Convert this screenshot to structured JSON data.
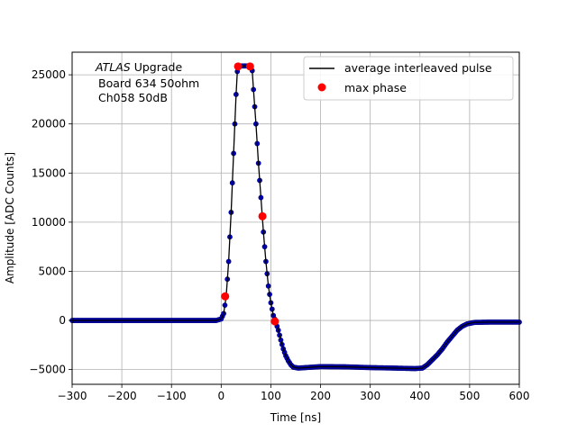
{
  "chart_data": {
    "type": "scatter",
    "xlabel": "Time [ns]",
    "ylabel": "Amplitude [ADC Counts]",
    "xlim": [
      -300,
      600
    ],
    "ylim": [
      -6500,
      27300
    ],
    "xticks": [
      -300,
      -200,
      -100,
      0,
      100,
      200,
      300,
      400,
      500,
      600
    ],
    "xtick_labels": [
      "−300",
      "−200",
      "−100",
      "0",
      "100",
      "200",
      "300",
      "400",
      "500",
      "600"
    ],
    "yticks": [
      -5000,
      0,
      5000,
      10000,
      15000,
      20000,
      25000
    ],
    "ytick_labels": [
      "−5000",
      "0",
      "5000",
      "10000",
      "15000",
      "20000",
      "25000"
    ],
    "grid": true,
    "legend_position": "top-right",
    "annotation": {
      "line1_italic": "ATLAS",
      "line1_rest": " Upgrade",
      "line2": "Board 634 50ohm",
      "line3": "Ch058 50dB"
    },
    "series": [
      {
        "name": "average interleaved pulse",
        "style": "line",
        "color": "#000000",
        "points": [
          [
            -300,
            0
          ],
          [
            -100,
            0
          ],
          [
            -10,
            0
          ],
          [
            0,
            150
          ],
          [
            5,
            700
          ],
          [
            10,
            2400
          ],
          [
            15,
            6000
          ],
          [
            20,
            11000
          ],
          [
            25,
            17000
          ],
          [
            30,
            23000
          ],
          [
            33,
            25800
          ],
          [
            40,
            25900
          ],
          [
            50,
            25900
          ],
          [
            58,
            25900
          ],
          [
            62,
            25800
          ],
          [
            65,
            23500
          ],
          [
            70,
            20000
          ],
          [
            75,
            16000
          ],
          [
            80,
            12500
          ],
          [
            85,
            9000
          ],
          [
            90,
            6000
          ],
          [
            95,
            3500
          ],
          [
            100,
            1800
          ],
          [
            105,
            500
          ],
          [
            110,
            -200
          ],
          [
            115,
            -1000
          ],
          [
            120,
            -2000
          ],
          [
            125,
            -2900
          ],
          [
            130,
            -3600
          ],
          [
            135,
            -4100
          ],
          [
            140,
            -4500
          ],
          [
            145,
            -4750
          ],
          [
            155,
            -4850
          ],
          [
            170,
            -4800
          ],
          [
            200,
            -4700
          ],
          [
            250,
            -4720
          ],
          [
            300,
            -4800
          ],
          [
            350,
            -4850
          ],
          [
            390,
            -4900
          ],
          [
            405,
            -4850
          ],
          [
            415,
            -4500
          ],
          [
            425,
            -4000
          ],
          [
            435,
            -3500
          ],
          [
            445,
            -2900
          ],
          [
            455,
            -2200
          ],
          [
            465,
            -1600
          ],
          [
            475,
            -1000
          ],
          [
            485,
            -600
          ],
          [
            495,
            -350
          ],
          [
            510,
            -200
          ],
          [
            540,
            -170
          ],
          [
            600,
            -170
          ]
        ]
      },
      {
        "name": "max phase",
        "style": "marker",
        "color": "#ff0000",
        "points": [
          [
            8,
            2450
          ],
          [
            34,
            25850
          ],
          [
            58,
            25850
          ],
          [
            83,
            10600
          ],
          [
            108,
            -100
          ]
        ]
      }
    ],
    "sample_marker_color": "#0000cc",
    "sample_marker_edge": "#000080"
  }
}
